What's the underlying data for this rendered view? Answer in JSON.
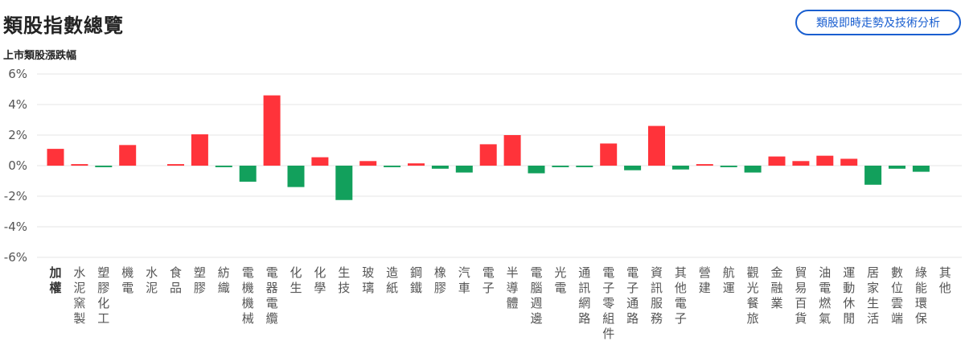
{
  "header": {
    "title": "類股指數總覽",
    "analysis_button_label": "類股即時走勢及技術分析"
  },
  "colors": {
    "positive": "#ff333a",
    "negative": "#12a05c",
    "grid": "#e6e6e6"
  },
  "chart_data": {
    "type": "bar",
    "title": "上市類股漲跌幅",
    "ylim": [
      -6,
      6
    ],
    "yticks": [
      "6%",
      "4%",
      "2%",
      "0%",
      "-2%",
      "-4%",
      "-6%"
    ],
    "grid": true,
    "categories": [
      "加權",
      "水泥窯製",
      "塑膠化工",
      "機電",
      "水泥",
      "食品",
      "塑膠",
      "紡織",
      "電機機械",
      "電器電纜",
      "化生",
      "化學",
      "生技",
      "玻璃",
      "造紙",
      "鋼鐵",
      "橡膠",
      "汽車",
      "電子",
      "半導體",
      "電腦週邊",
      "光電",
      "通訊網路",
      "電子零組件",
      "電子通路",
      "資訊服務",
      "其他電子",
      "營建",
      "航運",
      "觀光餐旅",
      "金融業",
      "貿易百貨",
      "油電燃氣",
      "運動休閒",
      "居家生活",
      "數位雲端",
      "綠能環保",
      "其他"
    ],
    "values": [
      1.1,
      0.1,
      -0.1,
      1.35,
      0,
      0.1,
      2.05,
      -0.1,
      -1.05,
      4.6,
      -1.4,
      0.55,
      -2.25,
      0.3,
      -0.1,
      0.15,
      -0.2,
      -0.45,
      1.4,
      2.0,
      -0.5,
      -0.1,
      -0.1,
      1.45,
      -0.3,
      2.6,
      -0.25,
      0.1,
      -0.1,
      -0.45,
      0.6,
      0.3,
      0.65,
      0.45,
      -1.25,
      -0.2,
      -0.4,
      0
    ]
  }
}
